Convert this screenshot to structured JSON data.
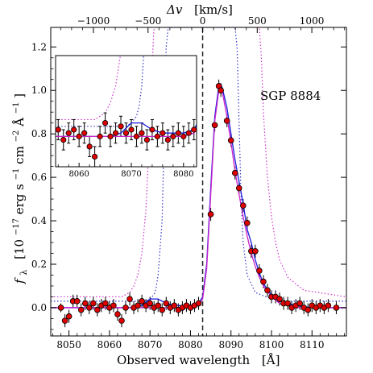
{
  "chart_data": {
    "type": "scatter",
    "annotation": "SGP 8884",
    "xlabel": "Observed wavelength",
    "xlabel_unit": "[Å]",
    "ylabel_symbol": "f",
    "ylabel_subscript": "λ",
    "ylabel_unit_pre": "[10",
    "ylabel_exp1": "−17",
    "ylabel_unit_mid": " erg s",
    "ylabel_exp2": "−1",
    "ylabel_unit_mid2": " cm",
    "ylabel_exp3": "−2",
    "ylabel_unit_mid3": " Å",
    "ylabel_exp4": "−1",
    "ylabel_unit_post": "]",
    "x2label_symbol": "Δv",
    "x2label_unit": "[km/s]",
    "xlim": [
      8045.5,
      8118.5
    ],
    "ylim": [
      -0.13,
      1.29
    ],
    "xticks": [
      8050,
      8060,
      8070,
      8080,
      8090,
      8100,
      8110
    ],
    "yticks": [
      0.0,
      0.2,
      0.4,
      0.6,
      0.8,
      1.0,
      1.2
    ],
    "ytick_labels": [
      "0.0",
      "0.2",
      "0.4",
      "0.6",
      "0.8",
      "1.0",
      "1.2"
    ],
    "v_ticks": [
      -1000,
      -500,
      0,
      500,
      1000
    ],
    "v_tick_labels": [
      "−1000",
      "−500",
      "0",
      "500",
      "1000"
    ],
    "lambda_systemic": 8083.0,
    "vline_x": 8083.0,
    "grid": false,
    "colors": {
      "points": "#e00000",
      "model_blue": "#1a1adc",
      "model_magenta": "#cc22cc",
      "dotted_blue": "#3333cc",
      "dotted_magenta": "#cc33cc",
      "dashed": "#222222"
    },
    "data_points": [
      {
        "x": 8048.0,
        "y": 0.0,
        "err": 0.02
      },
      {
        "x": 8049.0,
        "y": -0.06,
        "err": 0.03
      },
      {
        "x": 8050.0,
        "y": -0.04,
        "err": 0.03
      },
      {
        "x": 8051.0,
        "y": 0.03,
        "err": 0.03
      },
      {
        "x": 8052.0,
        "y": 0.03,
        "err": 0.03
      },
      {
        "x": 8053.0,
        "y": -0.01,
        "err": 0.03
      },
      {
        "x": 8054.0,
        "y": 0.02,
        "err": 0.03
      },
      {
        "x": 8055.0,
        "y": 0.0,
        "err": 0.03
      },
      {
        "x": 8056.0,
        "y": 0.02,
        "err": 0.03
      },
      {
        "x": 8057.0,
        "y": -0.01,
        "err": 0.03
      },
      {
        "x": 8058.0,
        "y": 0.01,
        "err": 0.03
      },
      {
        "x": 8059.0,
        "y": 0.02,
        "err": 0.03
      },
      {
        "x": 8060.0,
        "y": 0.0,
        "err": 0.03
      },
      {
        "x": 8061.0,
        "y": 0.01,
        "err": 0.03
      },
      {
        "x": 8062.0,
        "y": -0.03,
        "err": 0.03
      },
      {
        "x": 8063.0,
        "y": -0.06,
        "err": 0.03
      },
      {
        "x": 8064.0,
        "y": 0.0,
        "err": 0.03
      },
      {
        "x": 8065.0,
        "y": 0.04,
        "err": 0.03
      },
      {
        "x": 8066.0,
        "y": 0.0,
        "err": 0.03
      },
      {
        "x": 8067.0,
        "y": 0.01,
        "err": 0.03
      },
      {
        "x": 8068.0,
        "y": 0.03,
        "err": 0.03
      },
      {
        "x": 8069.0,
        "y": 0.01,
        "err": 0.03
      },
      {
        "x": 8070.0,
        "y": 0.02,
        "err": 0.03
      },
      {
        "x": 8071.0,
        "y": 0.0,
        "err": 0.03
      },
      {
        "x": 8072.0,
        "y": 0.01,
        "err": 0.03
      },
      {
        "x": 8073.0,
        "y": -0.01,
        "err": 0.03
      },
      {
        "x": 8074.0,
        "y": 0.02,
        "err": 0.03
      },
      {
        "x": 8075.0,
        "y": 0.0,
        "err": 0.03
      },
      {
        "x": 8076.0,
        "y": 0.01,
        "err": 0.03
      },
      {
        "x": 8077.0,
        "y": -0.01,
        "err": 0.03
      },
      {
        "x": 8078.0,
        "y": 0.0,
        "err": 0.03
      },
      {
        "x": 8079.0,
        "y": 0.01,
        "err": 0.03
      },
      {
        "x": 8080.0,
        "y": 0.0,
        "err": 0.03
      },
      {
        "x": 8081.0,
        "y": 0.01,
        "err": 0.03
      },
      {
        "x": 8082.0,
        "y": 0.02,
        "err": 0.03
      },
      {
        "x": 8085.0,
        "y": 0.43,
        "err": 0.03
      },
      {
        "x": 8086.0,
        "y": 0.84,
        "err": 0.03
      },
      {
        "x": 8087.0,
        "y": 1.02,
        "err": 0.03
      },
      {
        "x": 8087.5,
        "y": 1.0,
        "err": 0.03
      },
      {
        "x": 8089.0,
        "y": 0.86,
        "err": 0.03
      },
      {
        "x": 8090.0,
        "y": 0.77,
        "err": 0.03
      },
      {
        "x": 8091.0,
        "y": 0.62,
        "err": 0.03
      },
      {
        "x": 8092.0,
        "y": 0.55,
        "err": 0.03
      },
      {
        "x": 8093.0,
        "y": 0.47,
        "err": 0.03
      },
      {
        "x": 8094.0,
        "y": 0.39,
        "err": 0.03
      },
      {
        "x": 8095.0,
        "y": 0.26,
        "err": 0.03
      },
      {
        "x": 8096.0,
        "y": 0.26,
        "err": 0.03
      },
      {
        "x": 8097.0,
        "y": 0.17,
        "err": 0.03
      },
      {
        "x": 8098.0,
        "y": 0.12,
        "err": 0.03
      },
      {
        "x": 8099.0,
        "y": 0.08,
        "err": 0.03
      },
      {
        "x": 8100.0,
        "y": 0.05,
        "err": 0.03
      },
      {
        "x": 8101.0,
        "y": 0.05,
        "err": 0.03
      },
      {
        "x": 8102.0,
        "y": 0.04,
        "err": 0.03
      },
      {
        "x": 8103.0,
        "y": 0.02,
        "err": 0.03
      },
      {
        "x": 8104.0,
        "y": 0.02,
        "err": 0.03
      },
      {
        "x": 8105.0,
        "y": 0.0,
        "err": 0.03
      },
      {
        "x": 8106.0,
        "y": 0.01,
        "err": 0.03
      },
      {
        "x": 8107.0,
        "y": 0.02,
        "err": 0.03
      },
      {
        "x": 8108.0,
        "y": 0.0,
        "err": 0.03
      },
      {
        "x": 8109.0,
        "y": -0.01,
        "err": 0.03
      },
      {
        "x": 8110.0,
        "y": 0.01,
        "err": 0.03
      },
      {
        "x": 8111.0,
        "y": 0.0,
        "err": 0.03
      },
      {
        "x": 8112.0,
        "y": 0.01,
        "err": 0.03
      },
      {
        "x": 8113.0,
        "y": 0.0,
        "err": 0.03
      },
      {
        "x": 8114.0,
        "y": 0.01,
        "err": 0.03
      },
      {
        "x": 8116.0,
        "y": 0.0,
        "err": 0.03
      }
    ],
    "series": [
      {
        "style": "solid-blue",
        "x": [
          8045.5,
          8050,
          8055,
          8060,
          8062,
          8064,
          8066,
          8068,
          8070,
          8072,
          8074,
          8076,
          8078,
          8080,
          8082,
          8083,
          8084,
          8085,
          8086,
          8087,
          8087.5,
          8088,
          8089,
          8090,
          8091,
          8092,
          8093,
          8094,
          8095,
          8096,
          8097,
          8098,
          8100,
          8102,
          8104,
          8106,
          8110,
          8118.5
        ],
        "y": [
          0.0,
          0.0,
          0.0,
          0.0,
          0.0,
          0.0,
          0.0,
          0.01,
          0.04,
          0.04,
          0.02,
          0.01,
          0.01,
          0.01,
          0.02,
          0.05,
          0.2,
          0.55,
          0.88,
          1.02,
          1.03,
          1.0,
          0.92,
          0.8,
          0.68,
          0.58,
          0.48,
          0.36,
          0.3,
          0.22,
          0.16,
          0.11,
          0.06,
          0.03,
          0.02,
          0.01,
          0.0,
          0.0
        ]
      },
      {
        "style": "solid-magenta",
        "x": [
          8045.5,
          8060,
          8075,
          8080,
          8082,
          8083,
          8084,
          8085,
          8086,
          8087,
          8087.5,
          8088,
          8089,
          8090,
          8091,
          8092,
          8093,
          8094,
          8095,
          8096,
          8097,
          8098,
          8100,
          8102,
          8104,
          8106,
          8110,
          8118.5
        ],
        "y": [
          0.0,
          0.0,
          0.0,
          0.0,
          0.01,
          0.04,
          0.18,
          0.52,
          0.86,
          1.0,
          1.01,
          0.98,
          0.88,
          0.76,
          0.63,
          0.52,
          0.42,
          0.33,
          0.25,
          0.19,
          0.14,
          0.1,
          0.05,
          0.02,
          0.01,
          0.0,
          0.0,
          0.0
        ]
      },
      {
        "style": "dotted-blue",
        "x": [
          8045.5,
          8060,
          8067,
          8069,
          8070,
          8071,
          8071.5,
          8072,
          8073,
          8073.5,
          8074,
          8074.5,
          8075,
          8076,
          8077,
          8078,
          8080,
          8082,
          8083,
          8084,
          8085,
          8086,
          8087,
          8088,
          8089,
          8090,
          8091,
          8091.5,
          8092,
          8092.5,
          8093,
          8094,
          8096,
          8100,
          8105,
          8118.5
        ],
        "y": [
          0.03,
          0.03,
          0.03,
          0.03,
          0.04,
          0.06,
          0.09,
          0.15,
          0.4,
          0.8,
          1.2,
          1.29,
          1.29,
          1.29,
          1.29,
          1.29,
          1.29,
          1.29,
          1.29,
          1.29,
          1.29,
          1.29,
          1.29,
          1.29,
          1.29,
          1.29,
          1.29,
          1.2,
          0.85,
          0.5,
          0.3,
          0.15,
          0.07,
          0.04,
          0.03,
          0.03
        ]
      },
      {
        "style": "dotted-magenta",
        "x": [
          8045.5,
          8055,
          8060,
          8063,
          8065,
          8066,
          8067,
          8068,
          8069,
          8070,
          8070.5,
          8071,
          8072,
          8080,
          8085,
          8090,
          8096,
          8097,
          8097.5,
          8098,
          8099,
          8100,
          8101,
          8102,
          8104,
          8108,
          8118.5
        ],
        "y": [
          0.05,
          0.05,
          0.05,
          0.05,
          0.07,
          0.1,
          0.15,
          0.25,
          0.45,
          0.85,
          1.1,
          1.29,
          1.29,
          1.29,
          1.29,
          1.29,
          1.29,
          1.29,
          1.15,
          0.9,
          0.6,
          0.42,
          0.3,
          0.22,
          0.14,
          0.08,
          0.05
        ]
      }
    ],
    "inset": {
      "xlim": [
        8055.5,
        8082.5
      ],
      "ylim": [
        -0.09,
        0.24
      ],
      "xticks": [
        8060,
        8070,
        8080
      ],
      "continuum_magenta": 0.0,
      "continuum_blue": 0.0
    }
  }
}
